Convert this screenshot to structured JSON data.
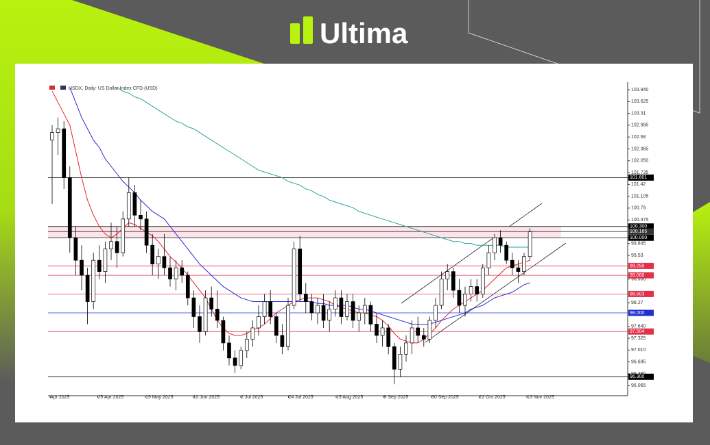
{
  "header": {
    "brand": "Ultima"
  },
  "chart_data": {
    "type": "candlestick",
    "title": "USDX, Daily: US Dollar Index CFD (USD)",
    "ohlc": [
      [
        102.6,
        103.0,
        100.9,
        102.8
      ],
      [
        102.8,
        103.2,
        102.2,
        102.9
      ],
      [
        102.9,
        103.1,
        101.3,
        101.6
      ],
      [
        101.6,
        101.9,
        99.6,
        100.0
      ],
      [
        100.0,
        100.3,
        99.0,
        99.4
      ],
      [
        99.4,
        99.8,
        98.6,
        99.0
      ],
      [
        99.0,
        99.2,
        97.7,
        98.3
      ],
      [
        98.3,
        99.6,
        98.1,
        99.4
      ],
      [
        99.4,
        99.8,
        98.9,
        99.1
      ],
      [
        99.1,
        99.9,
        98.8,
        99.7
      ],
      [
        99.7,
        100.4,
        99.4,
        99.9
      ],
      [
        99.9,
        100.3,
        99.2,
        99.6
      ],
      [
        99.6,
        100.7,
        99.5,
        100.5
      ],
      [
        100.5,
        101.6,
        100.3,
        101.2
      ],
      [
        101.2,
        101.4,
        100.3,
        100.6
      ],
      [
        100.6,
        101.0,
        100.2,
        100.5
      ],
      [
        100.5,
        100.7,
        99.6,
        99.8
      ],
      [
        99.8,
        100.1,
        99.0,
        99.3
      ],
      [
        99.3,
        99.7,
        98.9,
        99.5
      ],
      [
        99.5,
        100.1,
        99.0,
        99.2
      ],
      [
        99.2,
        99.5,
        98.7,
        98.9
      ],
      [
        98.9,
        99.4,
        98.6,
        99.2
      ],
      [
        99.2,
        99.4,
        98.8,
        99.0
      ],
      [
        99.0,
        99.1,
        98.2,
        98.4
      ],
      [
        98.4,
        98.6,
        97.6,
        97.9
      ],
      [
        97.9,
        98.2,
        97.2,
        97.5
      ],
      [
        97.5,
        98.6,
        97.4,
        98.4
      ],
      [
        98.4,
        98.7,
        97.9,
        98.1
      ],
      [
        98.1,
        98.6,
        97.6,
        97.8
      ],
      [
        97.8,
        97.9,
        97.0,
        97.2
      ],
      [
        97.2,
        97.4,
        96.6,
        96.8
      ],
      [
        96.8,
        97.0,
        96.4,
        96.6
      ],
      [
        96.6,
        97.1,
        96.5,
        97.0
      ],
      [
        97.0,
        97.5,
        96.8,
        97.3
      ],
      [
        97.3,
        97.8,
        97.1,
        97.6
      ],
      [
        97.6,
        98.2,
        97.4,
        97.9
      ],
      [
        97.9,
        98.5,
        97.7,
        98.3
      ],
      [
        98.3,
        98.6,
        97.7,
        97.9
      ],
      [
        97.9,
        98.0,
        97.2,
        97.4
      ],
      [
        97.4,
        97.7,
        96.9,
        97.1
      ],
      [
        97.1,
        98.4,
        97.0,
        98.2
      ],
      [
        98.2,
        99.9,
        98.1,
        99.7
      ],
      [
        99.7,
        100.05,
        98.3,
        98.5
      ],
      [
        98.5,
        98.8,
        98.0,
        98.3
      ],
      [
        98.3,
        98.5,
        97.8,
        98.0
      ],
      [
        98.0,
        98.4,
        97.7,
        98.2
      ],
      [
        98.2,
        98.5,
        97.6,
        97.8
      ],
      [
        97.8,
        98.3,
        97.5,
        98.1
      ],
      [
        98.1,
        98.6,
        97.9,
        98.4
      ],
      [
        98.4,
        98.6,
        97.7,
        97.9
      ],
      [
        97.9,
        98.5,
        97.8,
        98.3
      ],
      [
        98.3,
        98.5,
        97.6,
        97.8
      ],
      [
        97.8,
        98.2,
        97.5,
        98.0
      ],
      [
        98.0,
        98.4,
        97.7,
        98.2
      ],
      [
        98.2,
        98.3,
        97.5,
        97.7
      ],
      [
        97.7,
        98.0,
        97.2,
        97.4
      ],
      [
        97.4,
        97.8,
        97.1,
        97.6
      ],
      [
        97.6,
        97.7,
        96.9,
        97.1
      ],
      [
        97.1,
        97.2,
        96.1,
        96.5
      ],
      [
        96.5,
        97.1,
        96.3,
        96.9
      ],
      [
        96.9,
        97.4,
        96.7,
        97.2
      ],
      [
        97.2,
        97.8,
        96.9,
        97.6
      ],
      [
        97.6,
        97.9,
        97.2,
        97.4
      ],
      [
        97.4,
        97.6,
        97.1,
        97.3
      ],
      [
        97.3,
        97.9,
        97.2,
        97.8
      ],
      [
        97.8,
        98.4,
        97.6,
        98.2
      ],
      [
        98.2,
        99.1,
        98.1,
        98.9
      ],
      [
        98.9,
        99.3,
        98.6,
        99.1
      ],
      [
        99.1,
        99.2,
        98.4,
        98.6
      ],
      [
        98.6,
        98.9,
        98.0,
        98.2
      ],
      [
        98.2,
        98.7,
        97.9,
        98.5
      ],
      [
        98.5,
        98.9,
        98.3,
        98.7
      ],
      [
        98.7,
        98.9,
        98.3,
        98.5
      ],
      [
        98.5,
        99.3,
        98.4,
        99.2
      ],
      [
        99.2,
        99.8,
        99.0,
        99.6
      ],
      [
        99.6,
        100.1,
        99.4,
        100.0
      ],
      [
        100.0,
        100.2,
        99.6,
        99.8
      ],
      [
        99.8,
        99.9,
        99.3,
        99.4
      ],
      [
        99.4,
        99.6,
        99.0,
        99.2
      ],
      [
        99.2,
        99.4,
        98.8,
        99.1
      ],
      [
        99.1,
        99.6,
        99.0,
        99.5
      ],
      [
        99.5,
        100.25,
        99.4,
        100.16
      ]
    ],
    "up_color": "#ffffff",
    "down_color": "#000000",
    "series": [
      {
        "color": "#e8242a",
        "values": [
          103.9,
          103.6,
          103.3,
          103.0,
          102.3,
          101.6,
          101.0,
          100.6,
          100.3,
          100.1,
          100.0,
          100.1,
          100.25,
          100.4,
          100.35,
          100.25,
          100.15,
          100.05,
          99.9,
          99.7,
          99.5,
          99.35,
          99.2,
          99.0,
          98.8,
          98.6,
          98.4,
          98.1,
          97.8,
          97.6,
          97.45,
          97.4,
          97.4,
          97.45,
          97.55,
          97.6,
          97.7,
          97.85,
          98.0,
          98.1,
          98.2,
          98.3,
          98.35,
          98.4,
          98.4,
          98.4,
          98.35,
          98.3,
          98.2,
          98.15,
          98.1,
          98.05,
          98.0,
          98.0,
          97.95,
          97.9,
          97.8,
          97.65,
          97.45,
          97.3,
          97.25,
          97.2,
          97.2,
          97.3,
          97.45,
          97.6,
          97.8,
          97.95,
          98.1,
          98.2,
          98.3,
          98.4,
          98.5,
          98.6,
          98.75,
          98.9,
          99.05,
          99.2,
          99.25,
          99.3,
          99.35,
          99.4
        ]
      },
      {
        "color": "#2a2ad8",
        "values": [
          null,
          null,
          null,
          104.0,
          103.6,
          103.2,
          102.9,
          102.6,
          102.4,
          102.1,
          101.9,
          101.7,
          101.5,
          101.35,
          101.2,
          101.0,
          100.85,
          100.7,
          100.6,
          100.5,
          100.3,
          100.1,
          99.9,
          99.7,
          99.5,
          99.3,
          99.15,
          99.0,
          98.85,
          98.7,
          98.6,
          98.5,
          98.4,
          98.35,
          98.3,
          98.3,
          98.3,
          98.3,
          98.3,
          98.3,
          98.3,
          98.3,
          98.3,
          98.3,
          98.3,
          98.25,
          98.25,
          98.2,
          98.2,
          98.2,
          98.2,
          98.15,
          98.1,
          98.1,
          98.05,
          98.0,
          97.95,
          97.9,
          97.85,
          97.8,
          97.75,
          97.7,
          97.7,
          97.7,
          97.7,
          97.75,
          97.8,
          97.85,
          97.9,
          97.95,
          98.0,
          98.1,
          98.15,
          98.2,
          98.3,
          98.4,
          98.45,
          98.5,
          98.55,
          98.65,
          98.75,
          98.8
        ]
      },
      {
        "color": "#2aa39a",
        "values": [
          null,
          null,
          null,
          null,
          null,
          null,
          null,
          null,
          null,
          null,
          null,
          104.0,
          103.9,
          103.85,
          103.75,
          103.7,
          103.6,
          103.5,
          103.4,
          103.3,
          103.2,
          103.1,
          103.05,
          102.95,
          102.9,
          102.8,
          102.7,
          102.6,
          102.5,
          102.4,
          102.3,
          102.2,
          102.1,
          102.0,
          101.9,
          101.8,
          101.75,
          101.7,
          101.65,
          101.6,
          101.5,
          101.45,
          101.4,
          101.3,
          101.25,
          101.15,
          101.1,
          101.0,
          100.95,
          100.9,
          100.85,
          100.8,
          100.7,
          100.65,
          100.6,
          100.55,
          100.5,
          100.45,
          100.4,
          100.35,
          100.3,
          100.25,
          100.2,
          100.15,
          100.1,
          100.05,
          100.0,
          99.95,
          99.9,
          99.9,
          99.85,
          99.85,
          99.8,
          99.8,
          99.8,
          99.8,
          99.8,
          99.75,
          99.75,
          99.75,
          99.75,
          99.75
        ]
      }
    ],
    "ylim": [
      95.85,
      104.05
    ],
    "yticks": [
      {
        "value": 103.94,
        "label": "103.940"
      },
      103.625,
      103.31,
      102.995,
      102.68,
      102.365,
      {
        "value": 102.05,
        "label": "102.050"
      },
      101.735,
      101.42,
      101.105,
      100.79,
      100.475,
      99.845,
      99.53,
      {
        "value": 98.9,
        "label": "98.900"
      },
      98.27,
      {
        "value": 97.64,
        "label": "97.640"
      },
      97.325,
      {
        "value": 97.01,
        "label": "97.010"
      },
      96.695,
      {
        "value": 96.38,
        "label": "96.380"
      },
      96.065
    ],
    "x_labels": [
      "Apr 2025",
      "25 Apr 2025",
      "19 May 2025",
      "10 Jun 2025",
      "2 Jul 2025",
      "24 Jul 2025",
      "15 Aug 2025",
      "8 Sep 2025",
      "30 Sep 2025",
      "22 Oct 2025",
      "13 Nov 2025"
    ],
    "levels": [
      {
        "value": 101.601,
        "color": "#000000"
      },
      {
        "value": 100.3,
        "label": "100.300",
        "color": "#000000"
      },
      {
        "value": 100.165,
        "color": "#333333"
      },
      {
        "value": 100,
        "label": "100.000",
        "color": "#000000"
      },
      {
        "value": 99.25,
        "label": "99.250",
        "color": "#e0304a"
      },
      {
        "value": 99,
        "label": "99.000",
        "color": "#e0304a"
      },
      {
        "value": 98.503,
        "color": "#e0304a"
      },
      {
        "value": 98,
        "label": "98.000",
        "color": "#1f2fd0"
      },
      {
        "value": 97.504,
        "color": "#e0304a"
      },
      {
        "value": 96.3,
        "label": "96.300",
        "color": "#000000"
      }
    ],
    "zone": [
      100,
      100.3
    ],
    "zone_color": "#fde4ea"
  }
}
